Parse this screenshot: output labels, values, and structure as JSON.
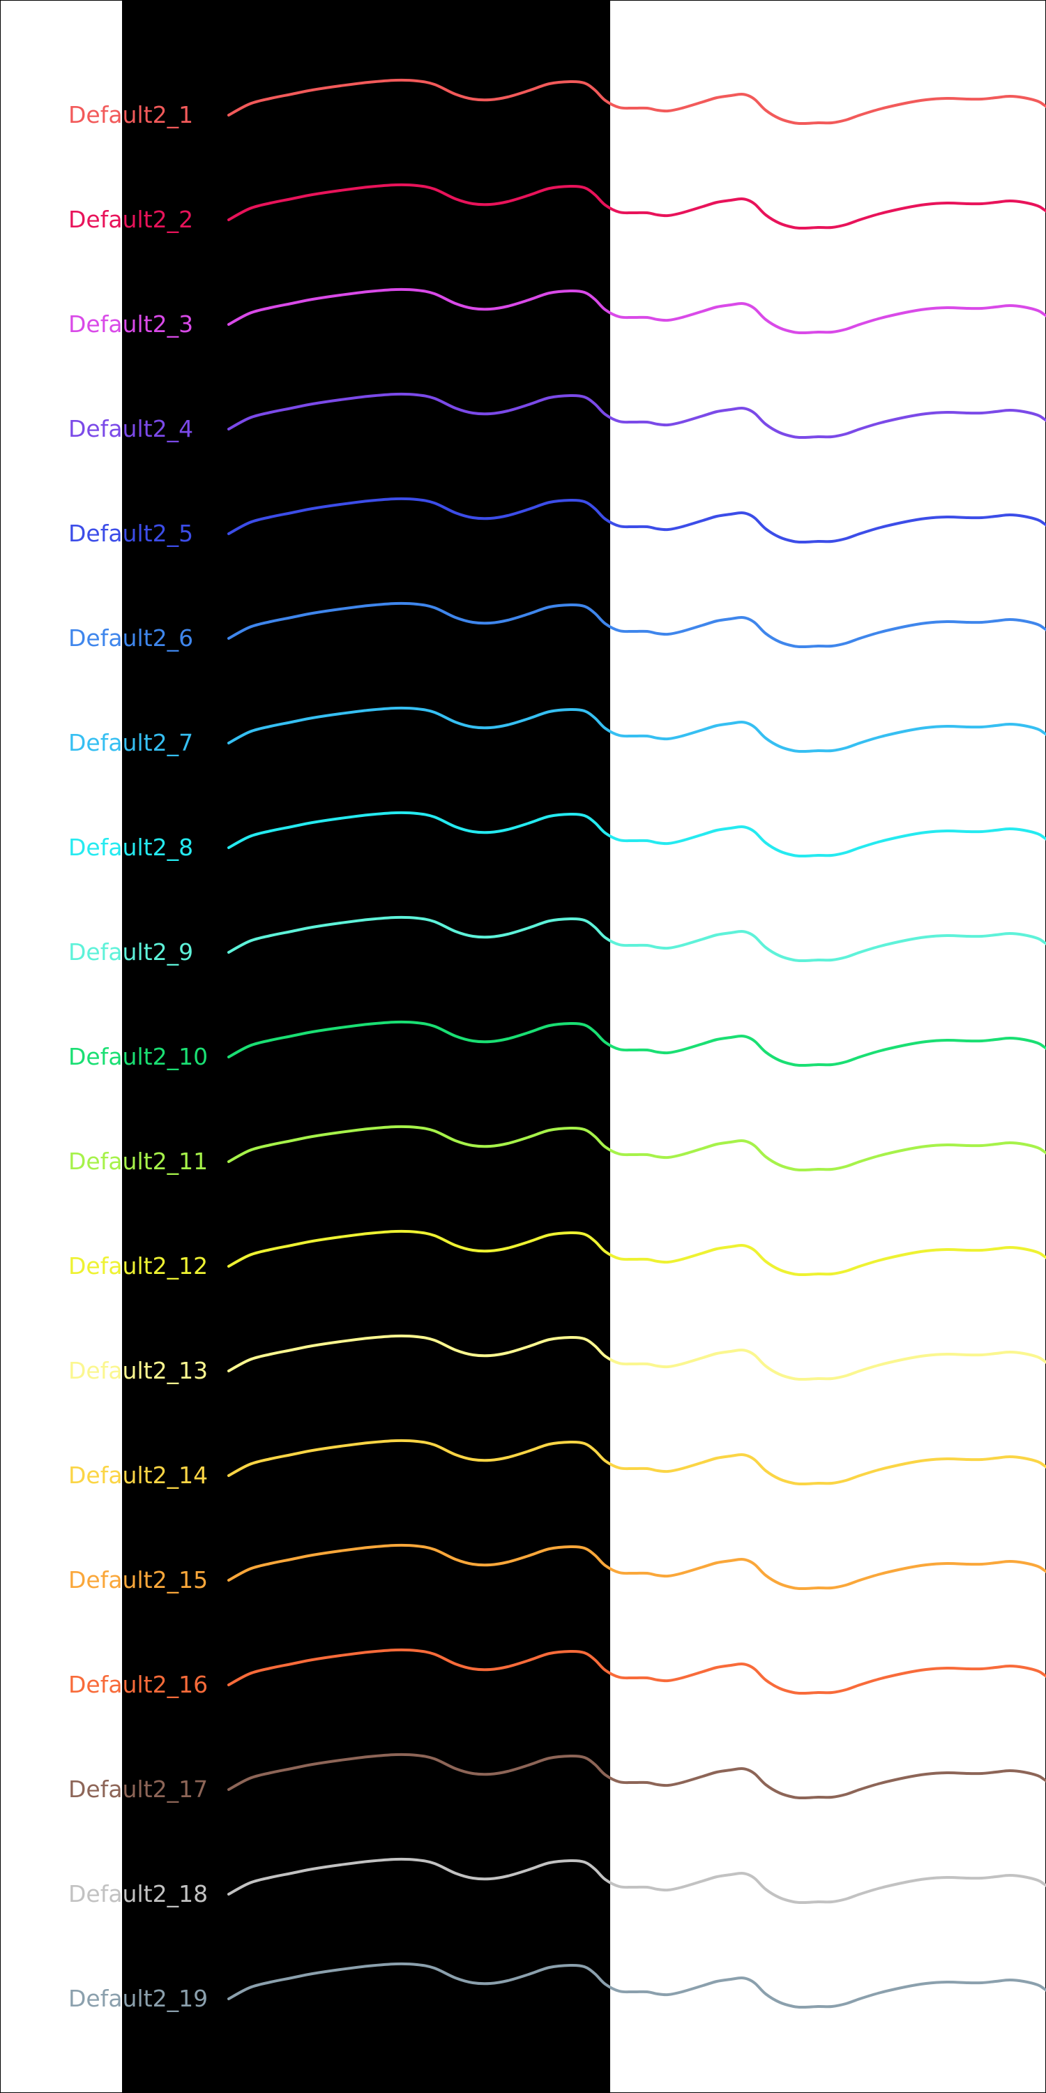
{
  "rows": [
    {
      "label": "Default2_1",
      "color": "#f25a5a"
    },
    {
      "label": "Default2_2",
      "color": "#e8135a"
    },
    {
      "label": "Default2_3",
      "color": "#d94ae8"
    },
    {
      "label": "Default2_4",
      "color": "#7b4ae8"
    },
    {
      "label": "Default2_5",
      "color": "#3c4de8"
    },
    {
      "label": "Default2_6",
      "color": "#3f86ec"
    },
    {
      "label": "Default2_7",
      "color": "#36bff2"
    },
    {
      "label": "Default2_8",
      "color": "#25eaf0"
    },
    {
      "label": "Default2_9",
      "color": "#5ef2d9"
    },
    {
      "label": "Default2_10",
      "color": "#1adf73"
    },
    {
      "label": "Default2_11",
      "color": "#a6f24a"
    },
    {
      "label": "Default2_12",
      "color": "#eef232"
    },
    {
      "label": "Default2_13",
      "color": "#fbf790"
    },
    {
      "label": "Default2_14",
      "color": "#fbd545"
    },
    {
      "label": "Default2_15",
      "color": "#faa73a"
    },
    {
      "label": "Default2_16",
      "color": "#f86b3a"
    },
    {
      "label": "Default2_17",
      "color": "#8d6557"
    },
    {
      "label": "Default2_18",
      "color": "#c2c2c2"
    },
    {
      "label": "Default2_19",
      "color": "#8ba0ad"
    }
  ]
}
